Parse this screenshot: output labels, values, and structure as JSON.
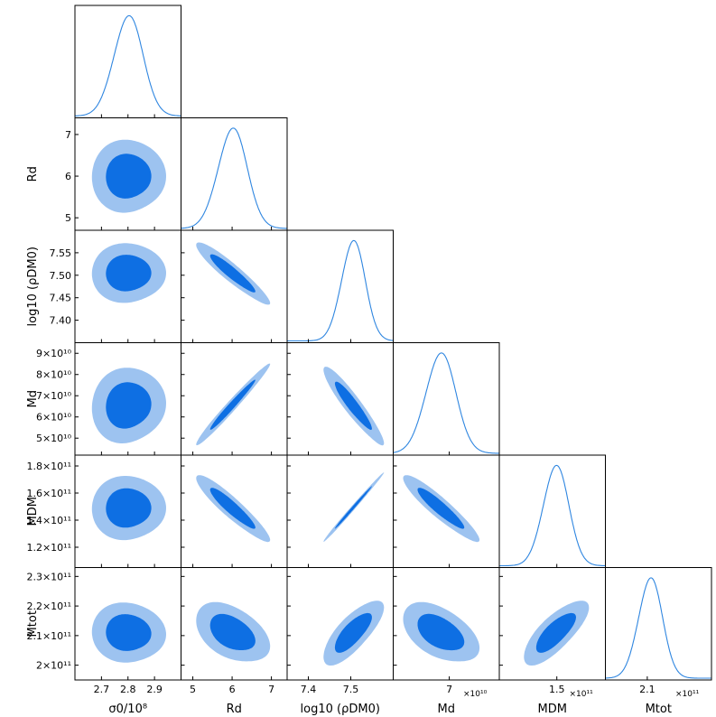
{
  "chart_data": {
    "type": "corner",
    "title": "",
    "colors": {
      "outer": "#9dc3f0",
      "inner": "#0e6fe3",
      "line": "#2f86e0",
      "frame": "#000000"
    },
    "parameters": [
      {
        "name": "sigma0",
        "label": "σ0/10⁸",
        "range": [
          2.6,
          3.0
        ],
        "mean": 2.8,
        "sigma": 0.055,
        "xticks": [
          "2.7",
          "2.8",
          "2.9"
        ],
        "xtick_values": [
          2.7,
          2.8,
          2.9
        ],
        "yticks": [],
        "ytick_values": [],
        "multiplier": ""
      },
      {
        "name": "Rd",
        "label": "Rd",
        "range": [
          4.7,
          7.4
        ],
        "mean": 6.0,
        "sigma": 0.37,
        "xticks": [
          "5",
          "6",
          "7"
        ],
        "xtick_values": [
          5,
          6,
          7
        ],
        "yticks": [
          "5",
          "6",
          "7"
        ],
        "ytick_values": [
          5,
          6,
          7
        ],
        "multiplier": ""
      },
      {
        "name": "log10_rhoDM0",
        "label": "log10 (ρDM0)",
        "range": [
          7.35,
          7.6
        ],
        "mean": 7.505,
        "sigma": 0.028,
        "xticks": [
          "7.4",
          "7.5"
        ],
        "xtick_values": [
          7.4,
          7.5
        ],
        "yticks": [
          "7.55",
          "7.50",
          "7.45",
          "7.40"
        ],
        "ytick_values": [
          7.55,
          7.5,
          7.45,
          7.4
        ],
        "multiplier": ""
      },
      {
        "name": "Md",
        "label": "Md",
        "range": [
          4.2,
          9.5
        ],
        "mean": 6.55,
        "sigma": 0.75,
        "xticks": [
          "7"
        ],
        "xtick_values": [
          7
        ],
        "yticks": [
          "9×10¹⁰",
          "8×10¹⁰",
          "7×10¹⁰",
          "6×10¹⁰",
          "5×10¹⁰"
        ],
        "ytick_values": [
          9,
          8,
          7,
          6,
          5
        ],
        "multiplier": "×10¹⁰"
      },
      {
        "name": "MDM",
        "label": "MDM",
        "range": [
          1.05,
          1.88
        ],
        "mean": 1.49,
        "sigma": 0.1,
        "xticks": [
          "1.5"
        ],
        "xtick_values": [
          1.5
        ],
        "yticks": [
          "1.8×10¹¹",
          "1.6×10¹¹",
          "1.4×10¹¹",
          "1.2×10¹¹"
        ],
        "ytick_values": [
          1.8,
          1.6,
          1.4,
          1.2
        ],
        "multiplier": "×10¹¹"
      },
      {
        "name": "Mtot",
        "label": "Mtot",
        "range": [
          1.95,
          2.33
        ],
        "mean": 2.11,
        "sigma": 0.043,
        "xticks": [
          "2.1"
        ],
        "xtick_values": [
          2.1
        ],
        "yticks": [
          "2.3×10¹¹",
          "2.2×10¹¹",
          "2.1×10¹¹",
          "2×10¹¹"
        ],
        "ytick_values": [
          2.3,
          2.2,
          2.1,
          2.0
        ],
        "multiplier": "×10¹¹"
      }
    ],
    "correlations": {
      "1-0": -0.05,
      "2-0": -0.05,
      "2-1": -0.93,
      "3-0": 0.0,
      "3-1": 0.98,
      "3-2": -0.93,
      "4-0": -0.05,
      "4-1": -0.92,
      "4-2": 0.998,
      "4-3": -0.92,
      "5-0": -0.1,
      "5-1": -0.45,
      "5-2": 0.72,
      "5-3": -0.5,
      "5-4": 0.72
    },
    "contour_levels": [
      "68%",
      "95%"
    ]
  }
}
